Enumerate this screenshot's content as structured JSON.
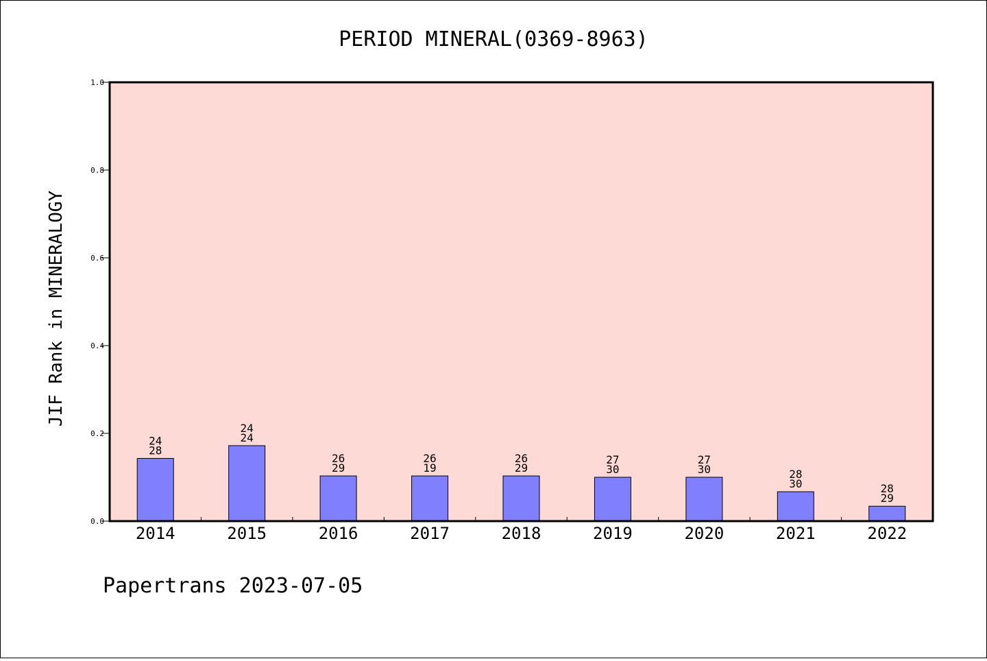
{
  "chart_data": {
    "type": "bar",
    "title": "PERIOD MINERAL(0369-8963)",
    "xlabel": "",
    "ylabel": "JIF Rank in MINERALOGY",
    "ylim": [
      0,
      1.0
    ],
    "yticks": [
      "0.0",
      "0.2",
      "0.4",
      "0.6",
      "0.8",
      "1.0"
    ],
    "categories": [
      "2014",
      "2015",
      "2016",
      "2017",
      "2018",
      "2019",
      "2020",
      "2021",
      "2022"
    ],
    "values": [
      0.143,
      0.172,
      0.103,
      0.103,
      0.103,
      0.1,
      0.1,
      0.067,
      0.034
    ],
    "labels_top": [
      "24",
      "24",
      "26",
      "26",
      "26",
      "27",
      "27",
      "28",
      "28"
    ],
    "labels_bottom": [
      "28",
      "24",
      "29",
      "19",
      "29",
      "30",
      "30",
      "30",
      "29"
    ],
    "grid": false,
    "legend": "none",
    "colors": {
      "plot_background": "#fddad6",
      "bar_fill": "#8080ff",
      "bar_stroke": "#000000"
    }
  },
  "footer": {
    "text": "Papertrans 2023-07-05"
  }
}
